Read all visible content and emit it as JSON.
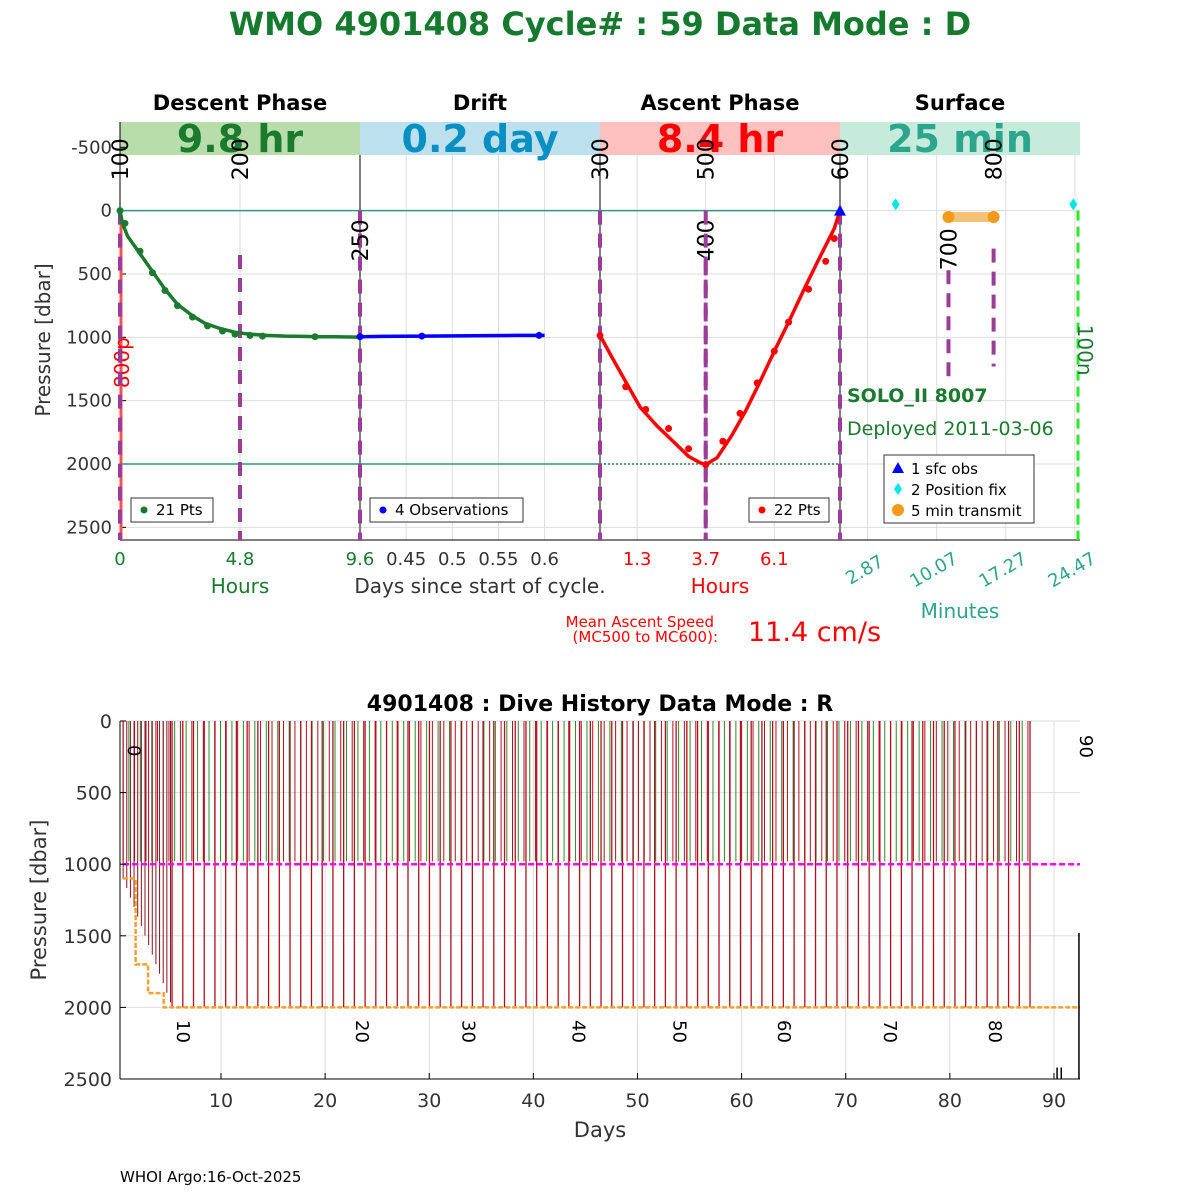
{
  "title": "WMO 4901408   Cycle# : 59   Data Mode : D",
  "colors": {
    "title": "#157a2e",
    "descent": "#1a7a2e",
    "drift": "#0000ff",
    "ascent": "#ff0000",
    "surface": "#2ca58d",
    "mc": "#9b3c9b",
    "grid": "#dddddd"
  },
  "footer": "WHOI Argo:16-Oct-2025",
  "chart_data": [
    {
      "type": "line",
      "name": "cycle-profile",
      "ylabel": "Pressure [dbar]",
      "ylim": [
        2600,
        -700
      ],
      "yticks": [
        -500,
        0,
        500,
        1000,
        1500,
        2000,
        2500
      ],
      "xlabel": "Days since start of cycle.",
      "phases": [
        {
          "key": "descent",
          "title": "Descent Phase",
          "duration": "9.8 hr",
          "band_color": "#b9dcab",
          "text_color": "#1a7a2e"
        },
        {
          "key": "drift",
          "title": "Drift",
          "duration": "0.2 day",
          "band_color": "#bde0ee",
          "text_color": "#0a8fc2"
        },
        {
          "key": "ascent",
          "title": "Ascent Phase",
          "duration": "8.4 hr",
          "band_color": "#ffc0c0",
          "text_color": "#ff0000"
        },
        {
          "key": "surface",
          "title": "Surface",
          "duration": "25 min",
          "band_color": "#c6eadb",
          "text_color": "#2ca58d"
        }
      ],
      "descent": {
        "xticks": [
          "0",
          "4.8",
          "9.6"
        ],
        "xlabel": "Hours",
        "legend": "21 Pts",
        "x_hours": [
          0,
          0.1,
          0.3,
          0.8,
          1.3,
          1.8,
          2.3,
          2.9,
          3.4,
          4.0,
          4.6,
          5.2,
          5.9,
          6.6,
          7.3,
          8.0,
          8.6,
          9.2,
          9.6
        ],
        "pressure": [
          0,
          100,
          200,
          340,
          480,
          620,
          740,
          830,
          890,
          930,
          960,
          975,
          985,
          990,
          993,
          995,
          996,
          997,
          998
        ],
        "markers_hours": [
          0,
          0.2,
          0.8,
          1.3,
          1.8,
          2.3,
          2.9,
          3.5,
          4.1,
          4.6,
          5.2,
          5.7,
          7.8
        ],
        "markers_p": [
          0,
          100,
          320,
          490,
          630,
          750,
          840,
          910,
          950,
          975,
          985,
          990,
          995
        ]
      },
      "drift": {
        "xticks": [
          "0.45",
          "0.5",
          "0.55",
          "0.6"
        ],
        "xtick_values": [
          0.45,
          0.5,
          0.55,
          0.6
        ],
        "xlim": [
          0.4,
          0.66
        ],
        "legend": "4 Observations",
        "x_days": [
          0.4,
          0.425,
          0.47,
          0.52,
          0.57,
          0.6
        ],
        "pressure": [
          995,
          993,
          990,
          988,
          985,
          985
        ],
        "markers_days": [
          0.4,
          0.467,
          0.594
        ],
        "markers_p": [
          995,
          990,
          985
        ]
      },
      "ascent": {
        "xticks": [
          "1.3",
          "3.7",
          "6.1"
        ],
        "xtick_values": [
          1.3,
          3.7,
          6.1
        ],
        "xlim": [
          0,
          8.4
        ],
        "xlabel": "Hours",
        "legend": "22 Pts",
        "x_hours": [
          0,
          0.4,
          0.9,
          1.4,
          2.0,
          2.6,
          3.1,
          3.5,
          3.7,
          4.1,
          4.6,
          5.1,
          5.6,
          6.1,
          6.6,
          7.1,
          7.6,
          8.0,
          8.2,
          8.4
        ],
        "pressure": [
          985,
          1150,
          1350,
          1550,
          1700,
          1830,
          1940,
          1990,
          2005,
          1950,
          1780,
          1580,
          1350,
          1110,
          880,
          640,
          410,
          230,
          140,
          0
        ],
        "markers_hours": [
          0,
          0.9,
          1.6,
          2.4,
          3.1,
          3.7,
          4.3,
          4.9,
          5.5,
          6.1,
          6.6,
          7.3,
          7.9,
          8.2
        ],
        "markers_p": [
          985,
          1390,
          1570,
          1720,
          1880,
          2005,
          1820,
          1600,
          1360,
          1110,
          880,
          620,
          400,
          220
        ]
      },
      "surface": {
        "xticks": [
          "2.87",
          "10.07",
          "17.27",
          "24.47"
        ],
        "xtick_values": [
          2.87,
          10.07,
          17.27,
          24.47
        ],
        "xlim": [
          0,
          25
        ],
        "xlabel": "Minutes",
        "position_fix_min": [
          5.8,
          24.3
        ],
        "position_fix_p": [
          -50,
          -50
        ],
        "transmit_min": [
          11.3,
          16.0
        ],
        "transmit_p": [
          50,
          50
        ],
        "surface_obs_min": 0,
        "surface_obs_p": 0
      },
      "mc_markers": [
        {
          "label": "100",
          "phase": "descent",
          "x": 0,
          "label_p": -240,
          "line_p": [
            0,
            2600
          ]
        },
        {
          "label": "200",
          "phase": "descent",
          "x": 4.8,
          "label_p": -240,
          "line_p": [
            350,
            2600
          ]
        },
        {
          "label": "250",
          "phase": "drift",
          "x": 0.4,
          "label_p": 400,
          "line_p": [
            0,
            2600
          ]
        },
        {
          "label": "300",
          "phase": "ascent",
          "x": 0,
          "label_p": -240,
          "line_p": [
            0,
            2600
          ]
        },
        {
          "label": "400",
          "phase": "ascent",
          "x": 3.7,
          "label_p": 400,
          "line_p": [
            400,
            2600
          ]
        },
        {
          "label": "500",
          "phase": "ascent",
          "x": 3.7,
          "label_p": -240,
          "line_p": [
            0,
            2600
          ]
        },
        {
          "label": "600",
          "phase": "ascent",
          "x": 8.4,
          "label_p": -240,
          "line_p": [
            0,
            2600
          ]
        },
        {
          "label": "700",
          "phase": "surface",
          "x": 11.3,
          "label_p": 470,
          "line_p": [
            470,
            1330
          ]
        },
        {
          "label": "800",
          "phase": "surface",
          "x": 16.0,
          "label_p": -240,
          "line_p": [
            300,
            1230
          ]
        }
      ],
      "park_pressure_label": "800p",
      "surface_depth_label": "100n",
      "reference_pressures": [
        0,
        2000
      ],
      "float_model": "SOLO_II 8007",
      "deployed": "Deployed 2011-03-06",
      "legend_surface": [
        "1 sfc obs",
        "2 Position fix",
        "5 min transmit"
      ],
      "ascent_speed": {
        "label_line1": "Mean Ascent Speed",
        "label_line2": "(MC500 to MC600):",
        "value": "11.4 cm/s"
      }
    },
    {
      "type": "line",
      "name": "dive-history",
      "title": "4901408 : Dive History      Data Mode : R",
      "xlabel": "Days",
      "ylabel": "Pressure [dbar]",
      "xlim": [
        0.3,
        92.5
      ],
      "ylim": [
        2500,
        0
      ],
      "xticks": [
        10,
        20,
        30,
        40,
        50,
        60,
        70,
        80,
        90
      ],
      "yticks": [
        0,
        500,
        1000,
        1500,
        2000,
        2500
      ],
      "park_pressure": 1000,
      "cycle_labels": [
        {
          "label": "0",
          "day": 0.6
        },
        {
          "label": "10",
          "day": 5.3
        },
        {
          "label": "20",
          "day": 22.5
        },
        {
          "label": "30",
          "day": 32.7
        },
        {
          "label": "40",
          "day": 43.3
        },
        {
          "label": "50",
          "day": 53.0
        },
        {
          "label": "60",
          "day": 63.0
        },
        {
          "label": "70",
          "day": 73.2
        },
        {
          "label": "80",
          "day": 83.3
        },
        {
          "label": "90",
          "day": 92.0
        }
      ],
      "profile_depth_days": [
        0.6,
        1.8,
        3.0,
        4.5,
        5.8
      ],
      "profile_depth_p": [
        1100,
        1700,
        1900,
        2000,
        2000
      ],
      "profile_depth_end_day": 92.5,
      "profile_depth_end_p": 2000
    }
  ]
}
